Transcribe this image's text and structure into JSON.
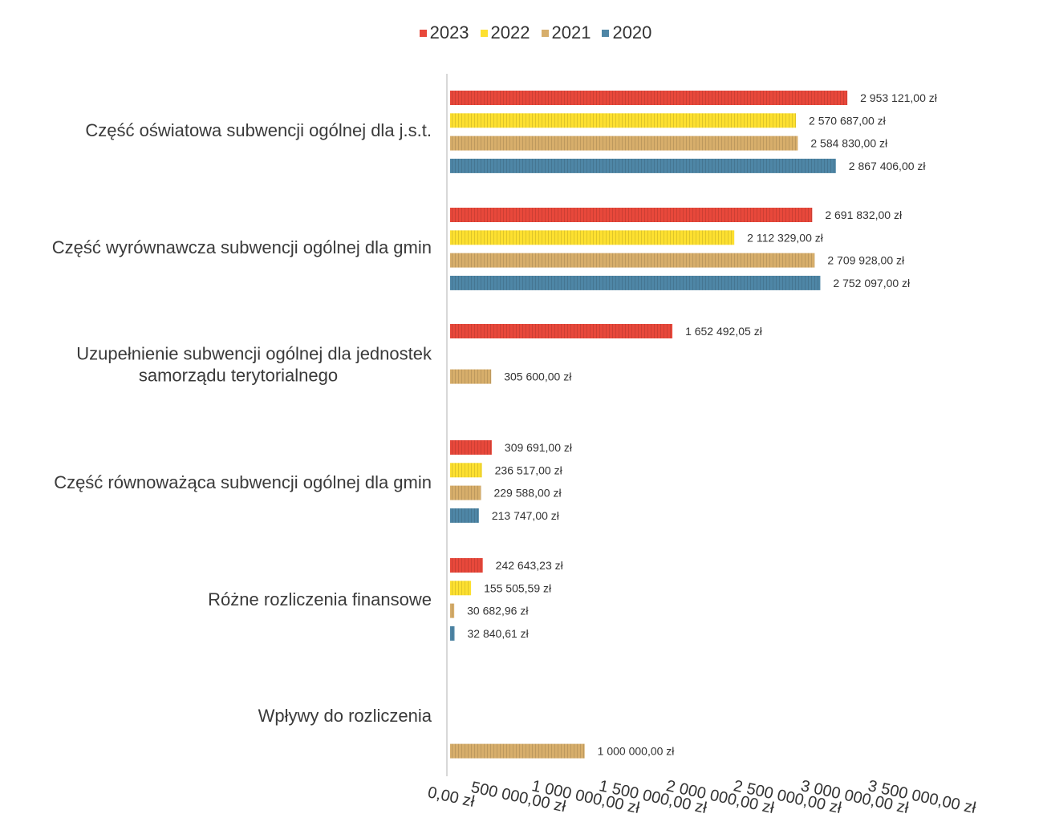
{
  "chart_data": {
    "type": "bar",
    "orientation": "horizontal",
    "categories": [
      "Część oświatowa subwencji ogólnej dla j.s.t.",
      "Część wyrównawcza subwencji ogólnej dla gmin",
      "Uzupełnienie subwencji ogólnej dla jednostek samorządu terytorialnego",
      "Część równoważąca subwencji ogólnej dla gmin",
      "Różne rozliczenia finansowe",
      "Wpływy do rozliczenia"
    ],
    "category_lines": [
      [
        "Część oświatowa subwencji ogólnej dla j.s.t."
      ],
      [
        "Część wyrównawcza subwencji ogólnej dla gmin"
      ],
      [
        "Uzupełnienie subwencji ogólnej dla jednostek",
        "samorządu terytorialnego"
      ],
      [
        "Część równoważąca subwencji ogólnej dla gmin"
      ],
      [
        "Różne rozliczenia finansowe"
      ],
      [
        "Wpływy do rozliczenia"
      ]
    ],
    "series": [
      {
        "name": "2023",
        "color": "#e8483b",
        "values": [
          2953121.0,
          2691832.0,
          1652492.05,
          309691.0,
          242643.23,
          null
        ],
        "labels": [
          "2 953 121,00 zł",
          "2 691 832,00 zł",
          "1 652 492,05 zł",
          "309 691,00 zł",
          "242 643,23 zł",
          null
        ]
      },
      {
        "name": "2022",
        "color": "#fde030",
        "values": [
          2570687.0,
          2112329.0,
          null,
          236517.0,
          155505.59,
          null
        ],
        "labels": [
          "2 570 687,00 zł",
          "2 112 329,00 zł",
          null,
          "236 517,00 zł",
          "155 505,59 zł",
          null
        ]
      },
      {
        "name": "2021",
        "color": "#d7ae6b",
        "values": [
          2584830.0,
          2709928.0,
          305600.0,
          229588.0,
          30682.96,
          1000000.0
        ],
        "labels": [
          "2 584 830,00 zł",
          "2 709 928,00 zł",
          "305 600,00 zł",
          "229 588,00 zł",
          "30 682,96 zł",
          "1 000 000,00 zł"
        ]
      },
      {
        "name": "2020",
        "color": "#4e86a6",
        "values": [
          2867406.0,
          2752097.0,
          null,
          213747.0,
          32840.61,
          null
        ],
        "labels": [
          "2 867 406,00 zł",
          "2 752 097,00 zł",
          null,
          "213 747,00 zł",
          "32 840,61 zł",
          null
        ]
      }
    ],
    "legend_order": [
      "2023",
      "2022",
      "2021",
      "2020"
    ],
    "legend_position": "top",
    "xlim": [
      0,
      3500000
    ],
    "xticks": [
      0,
      500000,
      1000000,
      1500000,
      2000000,
      2500000,
      3000000,
      3500000
    ],
    "xtick_labels": [
      "0,00 zł",
      "500 000,00 zł",
      "1 000 000,00 zł",
      "1 500 000,00 zł",
      "2 000 000,00 zł",
      "2 500 000,00 zł",
      "3 000 000,00 zł",
      "3 500 000,00 zł"
    ],
    "grid": false,
    "title": "",
    "xlabel": "",
    "ylabel": ""
  }
}
